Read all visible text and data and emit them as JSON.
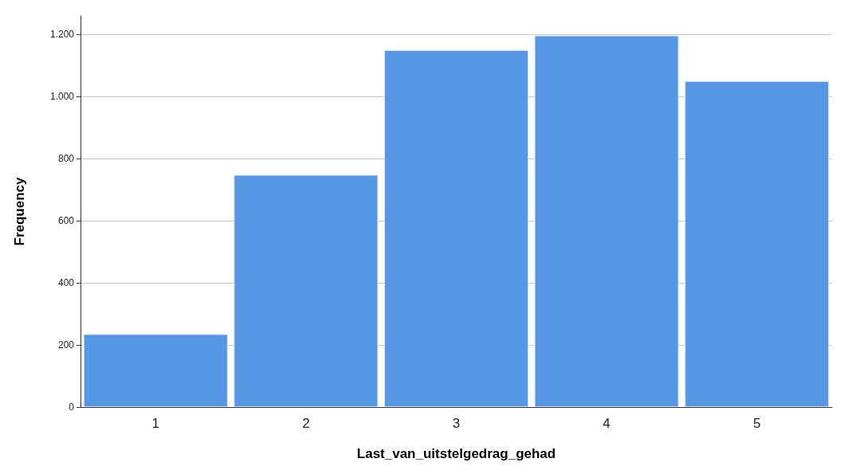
{
  "chart_data": {
    "type": "bar",
    "xlabel": "Last_van_uitstelgedrag_gehad",
    "ylabel": "Frequency",
    "categories": [
      "1",
      "2",
      "3",
      "4",
      "5"
    ],
    "values": [
      235,
      748,
      1150,
      1197,
      1050
    ],
    "color": "#5596e5",
    "ylim": [
      0,
      1260
    ],
    "yticks": [
      0,
      200,
      400,
      600,
      800,
      {
        "value": 1000,
        "label": "1.000"
      },
      {
        "value": 1200,
        "label": "1.200"
      }
    ],
    "grid": "y"
  }
}
